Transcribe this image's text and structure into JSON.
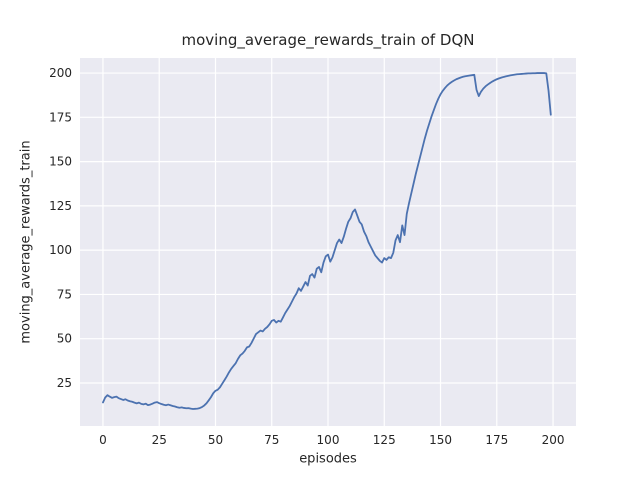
{
  "chart_data": {
    "type": "line",
    "title": "moving_average_rewards_train of DQN",
    "xlabel": "episodes",
    "ylabel": "moving_average_rewards_train",
    "x_ticks": [
      0,
      25,
      50,
      75,
      100,
      125,
      150,
      175,
      200
    ],
    "y_ticks": [
      25,
      50,
      75,
      100,
      125,
      150,
      175,
      200
    ],
    "xlim": [
      -10.2,
      210.2
    ],
    "ylim": [
      0.7,
      208.5
    ],
    "grid": true,
    "legend": "none",
    "style": {
      "figure_background": "#ffffff",
      "axes_background": "#eaeaf2",
      "grid_color": "#ffffff",
      "line_color": "#4c72b0",
      "text_color": "#262626"
    },
    "series": [
      {
        "name": "moving_average_rewards_train",
        "x_start": 0,
        "x_step": 1,
        "values": [
          14.0,
          16.8,
          18.1,
          17.3,
          16.6,
          17.0,
          17.3,
          16.4,
          15.9,
          15.4,
          15.8,
          15.1,
          14.7,
          14.4,
          13.9,
          13.5,
          13.9,
          13.2,
          12.9,
          13.3,
          12.5,
          12.8,
          13.3,
          13.9,
          14.2,
          13.6,
          13.1,
          12.7,
          12.4,
          12.8,
          12.4,
          12.0,
          11.7,
          11.3,
          11.0,
          11.2,
          10.9,
          10.7,
          10.8,
          10.5,
          10.3,
          10.4,
          10.5,
          10.8,
          11.4,
          12.3,
          13.5,
          15.2,
          17.0,
          19.2,
          20.6,
          21.2,
          22.6,
          24.6,
          26.6,
          28.7,
          31.0,
          33.0,
          34.6,
          36.2,
          38.6,
          40.6,
          41.6,
          43.1,
          45.1,
          45.6,
          47.6,
          50.1,
          52.6,
          53.6,
          54.6,
          54.1,
          55.6,
          56.6,
          58.1,
          60.1,
          60.6,
          59.1,
          60.1,
          59.6,
          62.0,
          64.5,
          66.5,
          68.5,
          71.0,
          73.5,
          75.5,
          78.5,
          77.0,
          79.5,
          82.0,
          80.0,
          85.5,
          86.5,
          84.5,
          89.5,
          90.5,
          87.5,
          93.0,
          96.5,
          97.5,
          93.5,
          96.0,
          100.0,
          104.0,
          106.0,
          104.0,
          107.5,
          112.0,
          116.0,
          118.0,
          121.5,
          123.0,
          119.5,
          116.0,
          114.5,
          110.5,
          108.0,
          104.5,
          102.0,
          99.5,
          97.0,
          95.5,
          94.0,
          93.0,
          95.5,
          94.5,
          96.0,
          95.5,
          98.5,
          105.5,
          108.5,
          104.5,
          114.0,
          108.5,
          120.5,
          126.5,
          132.0,
          137.5,
          143.0,
          148.0,
          153.0,
          158.0,
          163.0,
          167.5,
          171.5,
          175.5,
          179.0,
          182.5,
          185.5,
          188.0,
          190.0,
          191.6,
          193.0,
          194.1,
          195.0,
          195.8,
          196.5,
          197.0,
          197.5,
          197.9,
          198.2,
          198.4,
          198.6,
          198.8,
          199.0,
          190.5,
          187.0,
          189.5,
          191.2,
          192.5,
          193.5,
          194.4,
          195.2,
          195.9,
          196.5,
          197.0,
          197.4,
          197.8,
          198.1,
          198.4,
          198.7,
          198.9,
          199.1,
          199.3,
          199.4,
          199.5,
          199.6,
          199.7,
          199.8,
          199.8,
          199.9,
          199.9,
          200.0,
          200.0,
          200.0,
          200.0,
          199.8,
          190.0,
          176.5
        ]
      }
    ]
  }
}
